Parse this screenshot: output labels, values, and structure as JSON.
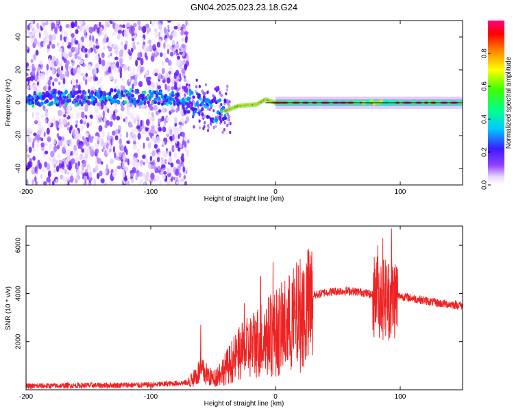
{
  "title": "GN04.2025.023.23.18.G24",
  "chart_data": [
    {
      "type": "heatmap",
      "xlabel": "Height of straight line (km)",
      "ylabel": "Frequency (Hz)",
      "xlim": [
        -200,
        150
      ],
      "ylim": [
        -50,
        50
      ],
      "xticks": [
        -200,
        -100,
        0,
        100
      ],
      "yticks": [
        -40,
        -20,
        0,
        20,
        40
      ],
      "colorbar": {
        "label": "Normalized spectral amplitude",
        "range": [
          0,
          1
        ],
        "ticks": [
          0.0,
          0.2,
          0.4,
          0.6,
          0.8
        ],
        "tick_labels": [
          "0.0",
          "0.2",
          "0.4",
          "0.6",
          "0.8"
        ],
        "colormap": "rainbow (white-violet-blue-cyan-green-yellow-red-magenta)"
      },
      "features": {
        "diffuse_scatter_region_x": [
          -200,
          -70
        ],
        "diffuse_scatter_freq_range": [
          -50,
          50
        ],
        "ridge_center_freq": [
          {
            "x": -200,
            "y": 2
          },
          {
            "x": -150,
            "y": 3
          },
          {
            "x": -120,
            "y": 4
          },
          {
            "x": -90,
            "y": 3
          },
          {
            "x": -70,
            "y": 1
          },
          {
            "x": -55,
            "y": -4
          },
          {
            "x": -40,
            "y": -5
          },
          {
            "x": -30,
            "y": -2
          },
          {
            "x": -15,
            "y": -1
          },
          {
            "x": -8,
            "y": 2
          },
          {
            "x": 0,
            "y": 0
          },
          {
            "x": 150,
            "y": 0
          }
        ],
        "carrier_line_freq": 0
      }
    },
    {
      "type": "line",
      "xlabel": "Height of straight line (km)",
      "ylabel": "SNR (10 * v/v)",
      "xlim": [
        -200,
        150
      ],
      "ylim": [
        0,
        6800
      ],
      "xticks": [
        -200,
        -100,
        0,
        100
      ],
      "yticks": [
        2000,
        4000,
        6000
      ],
      "series": [
        {
          "color": "#ee2222",
          "envelope": [
            {
              "x": -200,
              "y": 150
            },
            {
              "x": -150,
              "y": 180
            },
            {
              "x": -100,
              "y": 200
            },
            {
              "x": -70,
              "y": 300
            },
            {
              "x": -60,
              "y": 900
            },
            {
              "x": -50,
              "y": 500
            },
            {
              "x": -40,
              "y": 1000
            },
            {
              "x": -30,
              "y": 1600
            },
            {
              "x": -20,
              "y": 2000
            },
            {
              "x": -10,
              "y": 2400
            },
            {
              "x": 0,
              "y": 2600
            },
            {
              "x": 10,
              "y": 3000
            },
            {
              "x": 20,
              "y": 3500
            },
            {
              "x": 30,
              "y": 3900
            },
            {
              "x": 40,
              "y": 4050
            },
            {
              "x": 50,
              "y": 4100
            },
            {
              "x": 60,
              "y": 4100
            },
            {
              "x": 70,
              "y": 4050
            },
            {
              "x": 80,
              "y": 3900
            },
            {
              "x": 90,
              "y": 3800
            },
            {
              "x": 100,
              "y": 3900
            },
            {
              "x": 110,
              "y": 3800
            },
            {
              "x": 120,
              "y": 3700
            },
            {
              "x": 130,
              "y": 3600
            },
            {
              "x": 150,
              "y": 3500
            }
          ],
          "notable_peaks": [
            {
              "x": -60,
              "y": 2700
            },
            {
              "x": -25,
              "y": 3600
            },
            {
              "x": -12,
              "y": 4700
            },
            {
              "x": -2,
              "y": 5300
            },
            {
              "x": 82,
              "y": 6000
            },
            {
              "x": 86,
              "y": 6300
            },
            {
              "x": 93,
              "y": 6700
            }
          ]
        }
      ]
    }
  ]
}
